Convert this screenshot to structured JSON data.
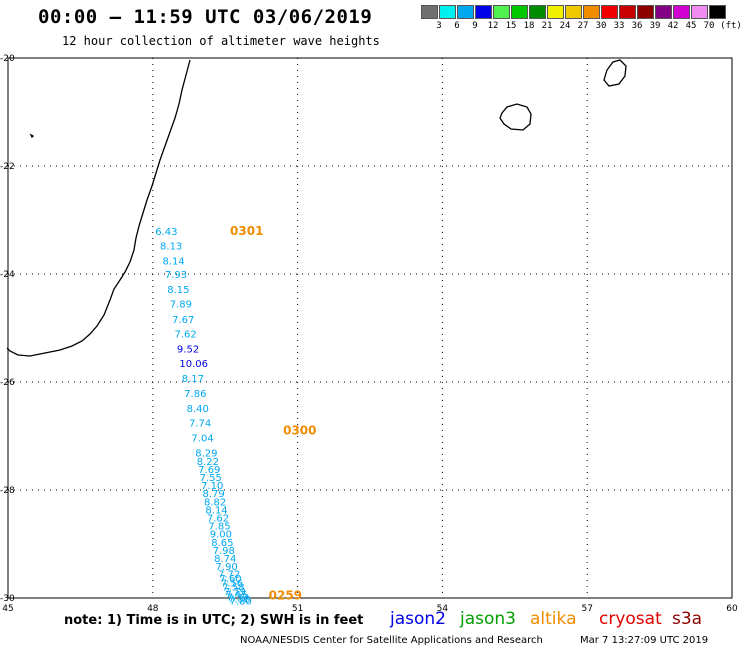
{
  "header": {
    "title": "00:00 – 11:59 UTC 03/06/2019",
    "subtitle": "12 hour collection of altimeter wave heights"
  },
  "colorbar": {
    "colors": [
      "#707070",
      "#00f0f0",
      "#00a8f0",
      "#0000e8",
      "#50f050",
      "#00c800",
      "#008c00",
      "#f0f000",
      "#f0c800",
      "#f08c00",
      "#f00000",
      "#c80000",
      "#8c0000",
      "#820082",
      "#d000d0",
      "#f08cf0",
      "#000000"
    ],
    "labels": [
      "3",
      "6",
      "9",
      "12",
      "15",
      "18",
      "21",
      "24",
      "27",
      "30",
      "33",
      "36",
      "39",
      "42",
      "45",
      "70"
    ],
    "unit": "(ft)"
  },
  "chart_data": {
    "type": "scatter",
    "xlim": [
      45,
      60
    ],
    "ylim": [
      -30,
      -20
    ],
    "xticks": [
      "45",
      "48",
      "51",
      "54",
      "57",
      "60"
    ],
    "yticks": [
      "-20",
      "-22",
      "-24",
      "-26",
      "-28",
      "-30"
    ],
    "grid": true,
    "track_times": [
      {
        "label": "0301",
        "lon": 49.6,
        "lat": -23.2
      },
      {
        "label": "0300",
        "lon": 50.7,
        "lat": -26.9
      },
      {
        "label": "0259",
        "lon": 50.4,
        "lat": -29.95
      }
    ],
    "points": [
      {
        "v": "6.43",
        "lon": 48.05,
        "lat": -23.2,
        "c": "#00a8f0"
      },
      {
        "v": "8.13",
        "lon": 48.15,
        "lat": -23.47,
        "c": "#00a8f0"
      },
      {
        "v": "8.14",
        "lon": 48.2,
        "lat": -23.75,
        "c": "#00a8f0"
      },
      {
        "v": "7.93",
        "lon": 48.25,
        "lat": -24.0,
        "c": "#00a8f0"
      },
      {
        "v": "8.15",
        "lon": 48.3,
        "lat": -24.28,
        "c": "#00a8f0"
      },
      {
        "v": "7.89",
        "lon": 48.35,
        "lat": -24.55,
        "c": "#00a8f0"
      },
      {
        "v": "7.67",
        "lon": 48.4,
        "lat": -24.83,
        "c": "#00a8f0"
      },
      {
        "v": "7.62",
        "lon": 48.45,
        "lat": -25.1,
        "c": "#00a8f0"
      },
      {
        "v": "9.52",
        "lon": 48.5,
        "lat": -25.38,
        "c": "#0000e8"
      },
      {
        "v": "10.06",
        "lon": 48.55,
        "lat": -25.65,
        "c": "#0000e8"
      },
      {
        "v": "8.17",
        "lon": 48.6,
        "lat": -25.93,
        "c": "#00a8f0"
      },
      {
        "v": "7.86",
        "lon": 48.65,
        "lat": -26.2,
        "c": "#00a8f0"
      },
      {
        "v": "8.40",
        "lon": 48.7,
        "lat": -26.48,
        "c": "#00a8f0"
      },
      {
        "v": "7.74",
        "lon": 48.75,
        "lat": -26.75,
        "c": "#00a8f0"
      },
      {
        "v": "7.04",
        "lon": 48.8,
        "lat": -27.03,
        "c": "#00a8f0"
      },
      {
        "v": "8.29",
        "lon": 48.88,
        "lat": -27.31,
        "c": "#00a8f0"
      },
      {
        "v": "8.22",
        "lon": 48.91,
        "lat": -27.46,
        "c": "#00a8f0"
      },
      {
        "v": "7.69",
        "lon": 48.94,
        "lat": -27.61,
        "c": "#00a8f0"
      },
      {
        "v": "7.55",
        "lon": 48.97,
        "lat": -27.76,
        "c": "#00a8f0"
      },
      {
        "v": "7.10",
        "lon": 49.0,
        "lat": -27.91,
        "c": "#00a8f0"
      },
      {
        "v": "8.79",
        "lon": 49.03,
        "lat": -28.06,
        "c": "#00a8f0"
      },
      {
        "v": "8.82",
        "lon": 49.06,
        "lat": -28.21,
        "c": "#00a8f0"
      },
      {
        "v": "8.14",
        "lon": 49.09,
        "lat": -28.36,
        "c": "#00a8f0"
      },
      {
        "v": "7.62",
        "lon": 49.12,
        "lat": -28.51,
        "c": "#00a8f0"
      },
      {
        "v": "7.85",
        "lon": 49.15,
        "lat": -28.66,
        "c": "#00a8f0"
      },
      {
        "v": "9.00",
        "lon": 49.18,
        "lat": -28.81,
        "c": "#00a8f0"
      },
      {
        "v": "8.65",
        "lon": 49.21,
        "lat": -28.96,
        "c": "#00a8f0"
      },
      {
        "v": "7.98",
        "lon": 49.24,
        "lat": -29.11,
        "c": "#00a8f0"
      },
      {
        "v": "8.74",
        "lon": 49.27,
        "lat": -29.26,
        "c": "#00a8f0"
      },
      {
        "v": "7.90",
        "lon": 49.3,
        "lat": -29.41,
        "c": "#00a8f0"
      },
      {
        "v": "7.72",
        "lon": 49.35,
        "lat": -29.55,
        "c": "#00a8f0"
      },
      {
        "v": "7.60",
        "lon": 49.38,
        "lat": -29.63,
        "c": "#00a8f0"
      },
      {
        "v": "7.56",
        "lon": 49.41,
        "lat": -29.71,
        "c": "#00a8f0"
      },
      {
        "v": "7.58",
        "lon": 49.44,
        "lat": -29.79,
        "c": "#00a8f0"
      },
      {
        "v": "7.79",
        "lon": 49.47,
        "lat": -29.87,
        "c": "#00a8f0"
      },
      {
        "v": "7.45",
        "lon": 49.5,
        "lat": -29.93,
        "c": "#00a8f0"
      },
      {
        "v": "7.39",
        "lon": 49.53,
        "lat": -29.97,
        "c": "#00a8f0"
      },
      {
        "v": "7.38",
        "lon": 49.56,
        "lat": -30.01,
        "c": "#00a8f0"
      },
      {
        "v": "7.80",
        "lon": 49.59,
        "lat": -30.05,
        "c": "#00a8f0"
      }
    ]
  },
  "footer": {
    "note": "note: 1) Time is in UTC; 2) SWH is in feet",
    "legend": [
      {
        "label": "jason2",
        "color": "#0000e8"
      },
      {
        "label": "jason3",
        "color": "#00a000"
      },
      {
        "label": "altika",
        "color": "#f08c00"
      },
      {
        "label": "cryosat",
        "color": "#e00000"
      },
      {
        "label": "s3a",
        "color": "#8c0000"
      }
    ],
    "credit": "NOAA/NESDIS Center for Satellite Applications and Research",
    "timestamp": "Mar  7 13:27:09 UTC 2019"
  }
}
